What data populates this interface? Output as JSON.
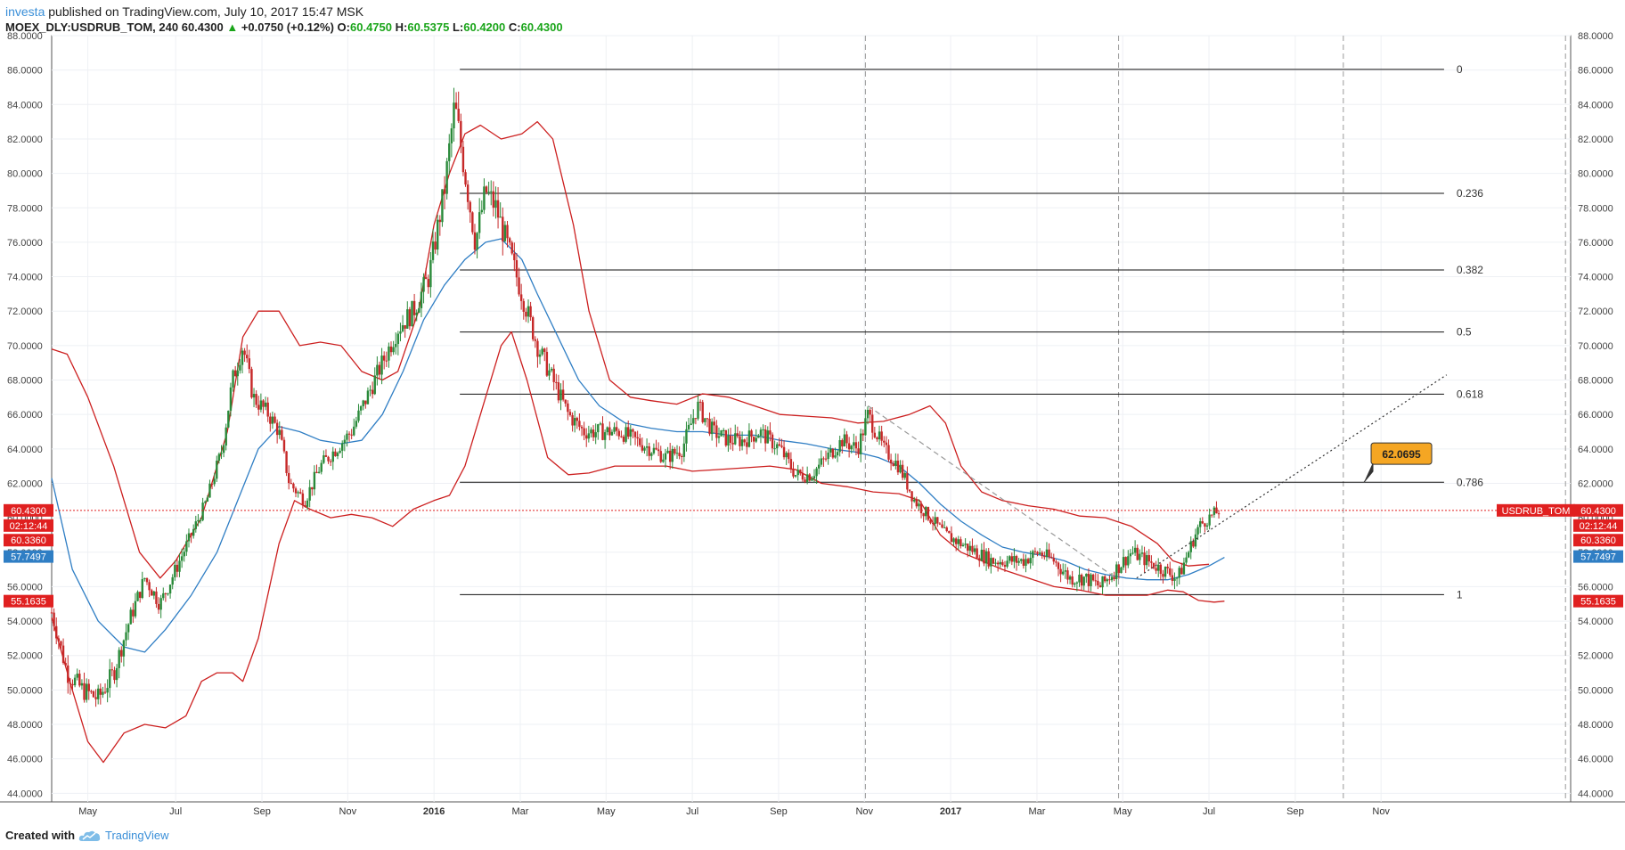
{
  "header": {
    "user": "investa",
    "published": "published on TradingView.com, July 10, 2017 15:47 MSK",
    "symbol": "MOEX_DLY:USDRUB_TOM, 240",
    "last": "60.4300",
    "change": "+0.0750 (+0.12%)",
    "o_label": "O:",
    "o_value": "60.4750",
    "h_label": "H:",
    "h_value": "60.5375",
    "l_label": "L:",
    "l_value": "60.4200",
    "c_label": "C:",
    "c_value": "60.4300"
  },
  "footer": {
    "created_with": "Created with",
    "brand": "TradingView"
  },
  "colors": {
    "up": "#2a8a3a",
    "down": "#c62828",
    "bands": "#cc1f1f",
    "ma": "#2f7ec4",
    "fib": "#111111",
    "price_line": "#e02020",
    "tag_orange": "#f5a623"
  },
  "chart_data": {
    "type": "candlestick",
    "symbol": "USDRUB_TOM",
    "ylim": [
      43.5,
      88
    ],
    "y_ticks": [
      "44.0000",
      "46.0000",
      "48.0000",
      "50.0000",
      "52.0000",
      "54.0000",
      "56.0000",
      "58.0000",
      "60.0000",
      "62.0000",
      "64.0000",
      "66.0000",
      "68.0000",
      "70.0000",
      "72.0000",
      "74.0000",
      "76.0000",
      "78.0000",
      "80.0000",
      "82.0000",
      "84.0000",
      "86.0000",
      "88.0000"
    ],
    "x_ticks": [
      {
        "label": "May",
        "x": 2015.33,
        "bold": false
      },
      {
        "label": "Jul",
        "x": 2015.5,
        "bold": false
      },
      {
        "label": "Sep",
        "x": 2015.667,
        "bold": false
      },
      {
        "label": "Nov",
        "x": 2015.833,
        "bold": false
      },
      {
        "label": "2016",
        "x": 2016.0,
        "bold": true
      },
      {
        "label": "Mar",
        "x": 2016.167,
        "bold": false
      },
      {
        "label": "May",
        "x": 2016.333,
        "bold": false
      },
      {
        "label": "Jul",
        "x": 2016.5,
        "bold": false
      },
      {
        "label": "Sep",
        "x": 2016.667,
        "bold": false
      },
      {
        "label": "Nov",
        "x": 2016.833,
        "bold": false
      },
      {
        "label": "2017",
        "x": 2017.0,
        "bold": true
      },
      {
        "label": "Mar",
        "x": 2017.167,
        "bold": false
      },
      {
        "label": "May",
        "x": 2017.333,
        "bold": false
      },
      {
        "label": "Jul",
        "x": 2017.5,
        "bold": false
      },
      {
        "label": "Sep",
        "x": 2017.667,
        "bold": false
      },
      {
        "label": "Nov",
        "x": 2017.833,
        "bold": false
      }
    ],
    "xlim": [
      2015.26,
      2018.2
    ],
    "price_path": [
      [
        2015.26,
        54.5
      ],
      [
        2015.29,
        51
      ],
      [
        2015.32,
        50
      ],
      [
        2015.35,
        49.5
      ],
      [
        2015.38,
        51
      ],
      [
        2015.41,
        54
      ],
      [
        2015.44,
        56.5
      ],
      [
        2015.47,
        55
      ],
      [
        2015.5,
        57
      ],
      [
        2015.53,
        59
      ],
      [
        2015.56,
        61
      ],
      [
        2015.59,
        64
      ],
      [
        2015.61,
        68
      ],
      [
        2015.63,
        70
      ],
      [
        2015.65,
        67
      ],
      [
        2015.68,
        66
      ],
      [
        2015.7,
        65
      ],
      [
        2015.72,
        62
      ],
      [
        2015.75,
        61
      ],
      [
        2015.78,
        63
      ],
      [
        2015.81,
        64
      ],
      [
        2015.84,
        65
      ],
      [
        2015.87,
        67
      ],
      [
        2015.9,
        69
      ],
      [
        2015.93,
        71
      ],
      [
        2015.96,
        72
      ],
      [
        2015.99,
        74
      ],
      [
        2016.02,
        79
      ],
      [
        2016.04,
        84
      ],
      [
        2016.06,
        80
      ],
      [
        2016.08,
        76
      ],
      [
        2016.1,
        79
      ],
      [
        2016.12,
        78
      ],
      [
        2016.14,
        76
      ],
      [
        2016.17,
        73
      ],
      [
        2016.2,
        70
      ],
      [
        2016.23,
        68
      ],
      [
        2016.26,
        66
      ],
      [
        2016.29,
        65
      ],
      [
        2016.33,
        65
      ],
      [
        2016.36,
        65
      ],
      [
        2016.39,
        64.5
      ],
      [
        2016.42,
        64
      ],
      [
        2016.45,
        63.5
      ],
      [
        2016.48,
        64
      ],
      [
        2016.51,
        66.5
      ],
      [
        2016.54,
        65
      ],
      [
        2016.57,
        64.5
      ],
      [
        2016.6,
        64.5
      ],
      [
        2016.63,
        65
      ],
      [
        2016.67,
        64
      ],
      [
        2016.7,
        62.5
      ],
      [
        2016.73,
        62.5
      ],
      [
        2016.76,
        63.5
      ],
      [
        2016.79,
        64.5
      ],
      [
        2016.82,
        64
      ],
      [
        2016.84,
        66
      ],
      [
        2016.87,
        64
      ],
      [
        2016.9,
        63
      ],
      [
        2016.93,
        61
      ],
      [
        2016.96,
        60
      ],
      [
        2016.99,
        59
      ],
      [
        2017.02,
        58.5
      ],
      [
        2017.05,
        58
      ],
      [
        2017.08,
        57.5
      ],
      [
        2017.11,
        57.5
      ],
      [
        2017.14,
        57.5
      ],
      [
        2017.17,
        58
      ],
      [
        2017.2,
        57.5
      ],
      [
        2017.23,
        56.5
      ],
      [
        2017.26,
        56.5
      ],
      [
        2017.29,
        56
      ],
      [
        2017.32,
        57
      ],
      [
        2017.35,
        58
      ],
      [
        2017.38,
        57.5
      ],
      [
        2017.41,
        57
      ],
      [
        2017.44,
        56.5
      ],
      [
        2017.46,
        58
      ],
      [
        2017.48,
        59.5
      ],
      [
        2017.5,
        60
      ],
      [
        2017.52,
        60.43
      ]
    ],
    "ma_path": [
      [
        2015.26,
        62.3
      ],
      [
        2015.3,
        57
      ],
      [
        2015.35,
        54
      ],
      [
        2015.4,
        52.5
      ],
      [
        2015.44,
        52.2
      ],
      [
        2015.48,
        53.5
      ],
      [
        2015.53,
        55.5
      ],
      [
        2015.58,
        58
      ],
      [
        2015.62,
        61
      ],
      [
        2015.66,
        64
      ],
      [
        2015.7,
        65.3
      ],
      [
        2015.74,
        65
      ],
      [
        2015.78,
        64.5
      ],
      [
        2015.82,
        64.3
      ],
      [
        2015.86,
        64.5
      ],
      [
        2015.9,
        66
      ],
      [
        2015.94,
        68.5
      ],
      [
        2015.98,
        71.5
      ],
      [
        2016.02,
        73.5
      ],
      [
        2016.06,
        75
      ],
      [
        2016.1,
        76
      ],
      [
        2016.13,
        76.2
      ],
      [
        2016.17,
        75
      ],
      [
        2016.2,
        73
      ],
      [
        2016.24,
        70.5
      ],
      [
        2016.28,
        68
      ],
      [
        2016.32,
        66.5
      ],
      [
        2016.37,
        65.5
      ],
      [
        2016.42,
        65.2
      ],
      [
        2016.47,
        65
      ],
      [
        2016.52,
        65
      ],
      [
        2016.57,
        64.8
      ],
      [
        2016.62,
        64.8
      ],
      [
        2016.67,
        64.5
      ],
      [
        2016.72,
        64.3
      ],
      [
        2016.77,
        64
      ],
      [
        2016.82,
        63.8
      ],
      [
        2016.86,
        63.5
      ],
      [
        2016.9,
        63
      ],
      [
        2016.94,
        62
      ],
      [
        2016.98,
        60.8
      ],
      [
        2017.02,
        59.8
      ],
      [
        2017.06,
        59
      ],
      [
        2017.1,
        58.3
      ],
      [
        2017.14,
        58
      ],
      [
        2017.18,
        57.8
      ],
      [
        2017.22,
        57.5
      ],
      [
        2017.26,
        57
      ],
      [
        2017.3,
        56.7
      ],
      [
        2017.34,
        56.5
      ],
      [
        2017.38,
        56.4
      ],
      [
        2017.42,
        56.4
      ],
      [
        2017.46,
        56.7
      ],
      [
        2017.5,
        57.2
      ],
      [
        2017.53,
        57.7
      ]
    ],
    "upper_band": [
      [
        2015.26,
        69.8
      ],
      [
        2015.29,
        69.5
      ],
      [
        2015.33,
        67
      ],
      [
        2015.38,
        63
      ],
      [
        2015.43,
        58
      ],
      [
        2015.47,
        56.5
      ],
      [
        2015.5,
        57.5
      ],
      [
        2015.55,
        60
      ],
      [
        2015.6,
        65
      ],
      [
        2015.63,
        70.5
      ],
      [
        2015.66,
        72
      ],
      [
        2015.7,
        72
      ],
      [
        2015.74,
        70
      ],
      [
        2015.78,
        70.2
      ],
      [
        2015.82,
        70
      ],
      [
        2015.86,
        68.5
      ],
      [
        2015.9,
        68
      ],
      [
        2015.93,
        68.5
      ],
      [
        2015.97,
        72
      ],
      [
        2016.0,
        77
      ],
      [
        2016.03,
        80
      ],
      [
        2016.06,
        82.3
      ],
      [
        2016.09,
        82.8
      ],
      [
        2016.13,
        82
      ],
      [
        2016.17,
        82.3
      ],
      [
        2016.2,
        83
      ],
      [
        2016.23,
        82
      ],
      [
        2016.27,
        77
      ],
      [
        2016.3,
        72
      ],
      [
        2016.34,
        68
      ],
      [
        2016.38,
        67
      ],
      [
        2016.42,
        66.8
      ],
      [
        2016.47,
        66.6
      ],
      [
        2016.52,
        67.2
      ],
      [
        2016.57,
        67
      ],
      [
        2016.62,
        66.5
      ],
      [
        2016.67,
        66
      ],
      [
        2016.72,
        65.9
      ],
      [
        2016.77,
        65.8
      ],
      [
        2016.82,
        65.5
      ],
      [
        2016.87,
        65.6
      ],
      [
        2016.92,
        66
      ],
      [
        2016.96,
        66.5
      ],
      [
        2016.99,
        65.5
      ],
      [
        2017.02,
        63
      ],
      [
        2017.06,
        61.5
      ],
      [
        2017.1,
        61
      ],
      [
        2017.15,
        60.7
      ],
      [
        2017.2,
        60.5
      ],
      [
        2017.25,
        60.1
      ],
      [
        2017.3,
        60
      ],
      [
        2017.35,
        59.5
      ],
      [
        2017.4,
        58.5
      ],
      [
        2017.43,
        57.5
      ],
      [
        2017.46,
        57.2
      ],
      [
        2017.5,
        57.3
      ]
    ],
    "lower_band": [
      [
        2015.26,
        54.2
      ],
      [
        2015.3,
        50
      ],
      [
        2015.33,
        47
      ],
      [
        2015.36,
        45.8
      ],
      [
        2015.4,
        47.5
      ],
      [
        2015.44,
        48
      ],
      [
        2015.48,
        47.8
      ],
      [
        2015.52,
        48.5
      ],
      [
        2015.55,
        50.5
      ],
      [
        2015.58,
        51
      ],
      [
        2015.61,
        51
      ],
      [
        2015.63,
        50.5
      ],
      [
        2015.66,
        53
      ],
      [
        2015.7,
        58.5
      ],
      [
        2015.73,
        61
      ],
      [
        2015.76,
        60.5
      ],
      [
        2015.8,
        60
      ],
      [
        2015.84,
        60.2
      ],
      [
        2015.88,
        60
      ],
      [
        2015.92,
        59.5
      ],
      [
        2015.96,
        60.5
      ],
      [
        2016.0,
        61
      ],
      [
        2016.03,
        61.3
      ],
      [
        2016.06,
        63
      ],
      [
        2016.1,
        67
      ],
      [
        2016.13,
        70
      ],
      [
        2016.15,
        70.8
      ],
      [
        2016.18,
        68
      ],
      [
        2016.22,
        63.5
      ],
      [
        2016.26,
        62.5
      ],
      [
        2016.3,
        62.6
      ],
      [
        2016.35,
        63
      ],
      [
        2016.4,
        63
      ],
      [
        2016.45,
        63
      ],
      [
        2016.5,
        62.7
      ],
      [
        2016.55,
        62.8
      ],
      [
        2016.6,
        62.9
      ],
      [
        2016.65,
        63
      ],
      [
        2016.7,
        62.8
      ],
      [
        2016.75,
        62
      ],
      [
        2016.8,
        61.8
      ],
      [
        2016.85,
        61.5
      ],
      [
        2016.9,
        61.4
      ],
      [
        2016.94,
        61
      ],
      [
        2016.98,
        59
      ],
      [
        2017.02,
        58
      ],
      [
        2017.06,
        57.5
      ],
      [
        2017.1,
        57
      ],
      [
        2017.15,
        56.5
      ],
      [
        2017.2,
        56
      ],
      [
        2017.25,
        55.8
      ],
      [
        2017.3,
        55.5
      ],
      [
        2017.34,
        55.5
      ],
      [
        2017.38,
        55.5
      ],
      [
        2017.42,
        55.8
      ],
      [
        2017.45,
        55.7
      ],
      [
        2017.48,
        55.2
      ],
      [
        2017.51,
        55.1
      ],
      [
        2017.53,
        55.16
      ]
    ],
    "vertical_dashed_x": [
      2016.835,
      2017.325,
      2017.76,
      2018.19
    ],
    "fibonacci": {
      "x_start": 2016.05,
      "x_end": 2017.955,
      "levels": [
        {
          "label": "0",
          "price": 86.04
        },
        {
          "label": "0.236",
          "price": 78.84
        },
        {
          "label": "0.382",
          "price": 74.39
        },
        {
          "label": "0.5",
          "price": 70.79
        },
        {
          "label": "0.618",
          "price": 67.18
        },
        {
          "label": "0.786",
          "price": 62.06
        },
        {
          "label": "1",
          "price": 55.54
        }
      ]
    },
    "trend_lines": [
      {
        "style": "dashed",
        "points": [
          [
            2016.84,
            66.5
          ],
          [
            2017.32,
            56.5
          ]
        ]
      },
      {
        "style": "dotted",
        "points": [
          [
            2017.36,
            56.5
          ],
          [
            2017.96,
            68.3
          ]
        ]
      }
    ],
    "callout": {
      "label": "62.0695",
      "price": 62.07,
      "anchor_x": 2017.8
    },
    "current_price_line": 60.43,
    "price_tags_left": [
      {
        "text": "60.4300",
        "price": 60.43,
        "color": "#e02020"
      },
      {
        "text": "02:12:44",
        "price": 59.55,
        "color": "#e02020"
      },
      {
        "text": "60.3360",
        "price": 58.7,
        "color": "#e02020"
      },
      {
        "text": "57.7497",
        "price": 57.75,
        "color": "#2f7ec4"
      },
      {
        "text": "55.1635",
        "price": 55.16,
        "color": "#e02020"
      }
    ],
    "price_tags_right": [
      {
        "text": "USDRUB_TOM",
        "price": 60.43,
        "color": "#e02020",
        "wide": true
      },
      {
        "text": "60.4300",
        "price": 60.43,
        "color": "#e02020"
      },
      {
        "text": "02:12:44",
        "price": 59.55,
        "color": "#e02020"
      },
      {
        "text": "60.3360",
        "price": 58.7,
        "color": "#e02020"
      },
      {
        "text": "57.7497",
        "price": 57.75,
        "color": "#2f7ec4"
      },
      {
        "text": "55.1635",
        "price": 55.16,
        "color": "#e02020"
      }
    ]
  }
}
